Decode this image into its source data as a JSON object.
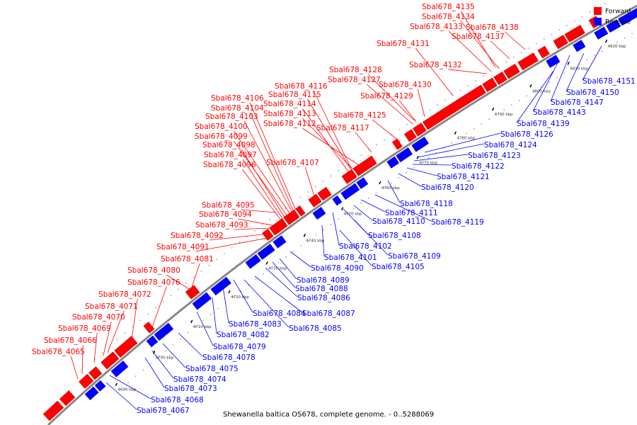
{
  "title": "Shewanella baltica OS678, complete genome. - 0..5288069",
  "legend": {
    "forward": "Forward",
    "reverse": "Reverse"
  },
  "colors": {
    "forward": "#ff0000",
    "reverse": "#0000ff",
    "axis": "#888888"
  },
  "ticks": [
    "4690 kbp",
    "4700 kbp",
    "4710 kbp",
    "4720 kbp",
    "4730 kbp",
    "4740 kbp",
    "4750 kbp",
    "4760 kbp",
    "4770 kbp",
    "4780 kbp",
    "4790 kbp",
    "4800 kbp",
    "4810 kbp",
    "4820 kbp"
  ],
  "forward_genes": [
    "Sbal678_4135",
    "Sbal678_4134",
    "Sbal678_4133",
    "Sbal678_4138",
    "Sbal678_4137",
    "Sbal678_4131",
    "Sbal678_4132",
    "Sbal678_4128",
    "Sbal678_4127",
    "Sbal678_4130",
    "Sbal678_4116",
    "Sbal678_4129",
    "Sbal678_4106",
    "Sbal678_4115",
    "Sbal678_4114",
    "Sbal678_4104",
    "Sbal678_4113",
    "Sbal678_4125",
    "Sbal678_4103",
    "Sbal678_4112",
    "Sbal678_4117",
    "Sbal678_4100",
    "Sbal678_4099",
    "Sbal678_4098",
    "Sbal678_4097",
    "Sbal678_4107",
    "Sbal678_4096",
    "Sbal678_4095",
    "Sbal678_4094",
    "Sbal678_4093",
    "Sbal678_4092",
    "Sbal678_4091",
    "Sbal678_4081",
    "Sbal678_4080",
    "Sbal678_4076",
    "Sbal678_4072",
    "Sbal678_4071",
    "Sbal678_4070",
    "Sbal678_4069",
    "Sbal678_4066",
    "Sbal678_4065"
  ],
  "reverse_genes": [
    "Sbal678_4151",
    "Sbal678_4150",
    "Sbal678_4147",
    "Sbal678_4143",
    "Sbal678_4139",
    "Sbal678_4126",
    "Sbal678_4124",
    "Sbal678_4123",
    "Sbal678_4122",
    "Sbal678_4121",
    "Sbal678_4120",
    "Sbal678_4118",
    "Sbal678_4111",
    "Sbal678_4110",
    "Sbal678_4119",
    "Sbal678_4108",
    "Sbal678_4102",
    "Sbal678_4109",
    "Sbal678_4101",
    "Sbal678_4105",
    "Sbal678_4090",
    "Sbal678_4089",
    "Sbal678_4088",
    "Sbal678_4086",
    "Sbal678_4084",
    "Sbal678_4087",
    "Sbal678_4083",
    "Sbal678_4085",
    "Sbal678_4082",
    "Sbal678_4079",
    "Sbal678_4078",
    "Sbal678_4075",
    "Sbal678_4074",
    "Sbal678_4073",
    "Sbal678_4068",
    "Sbal678_4067"
  ]
}
